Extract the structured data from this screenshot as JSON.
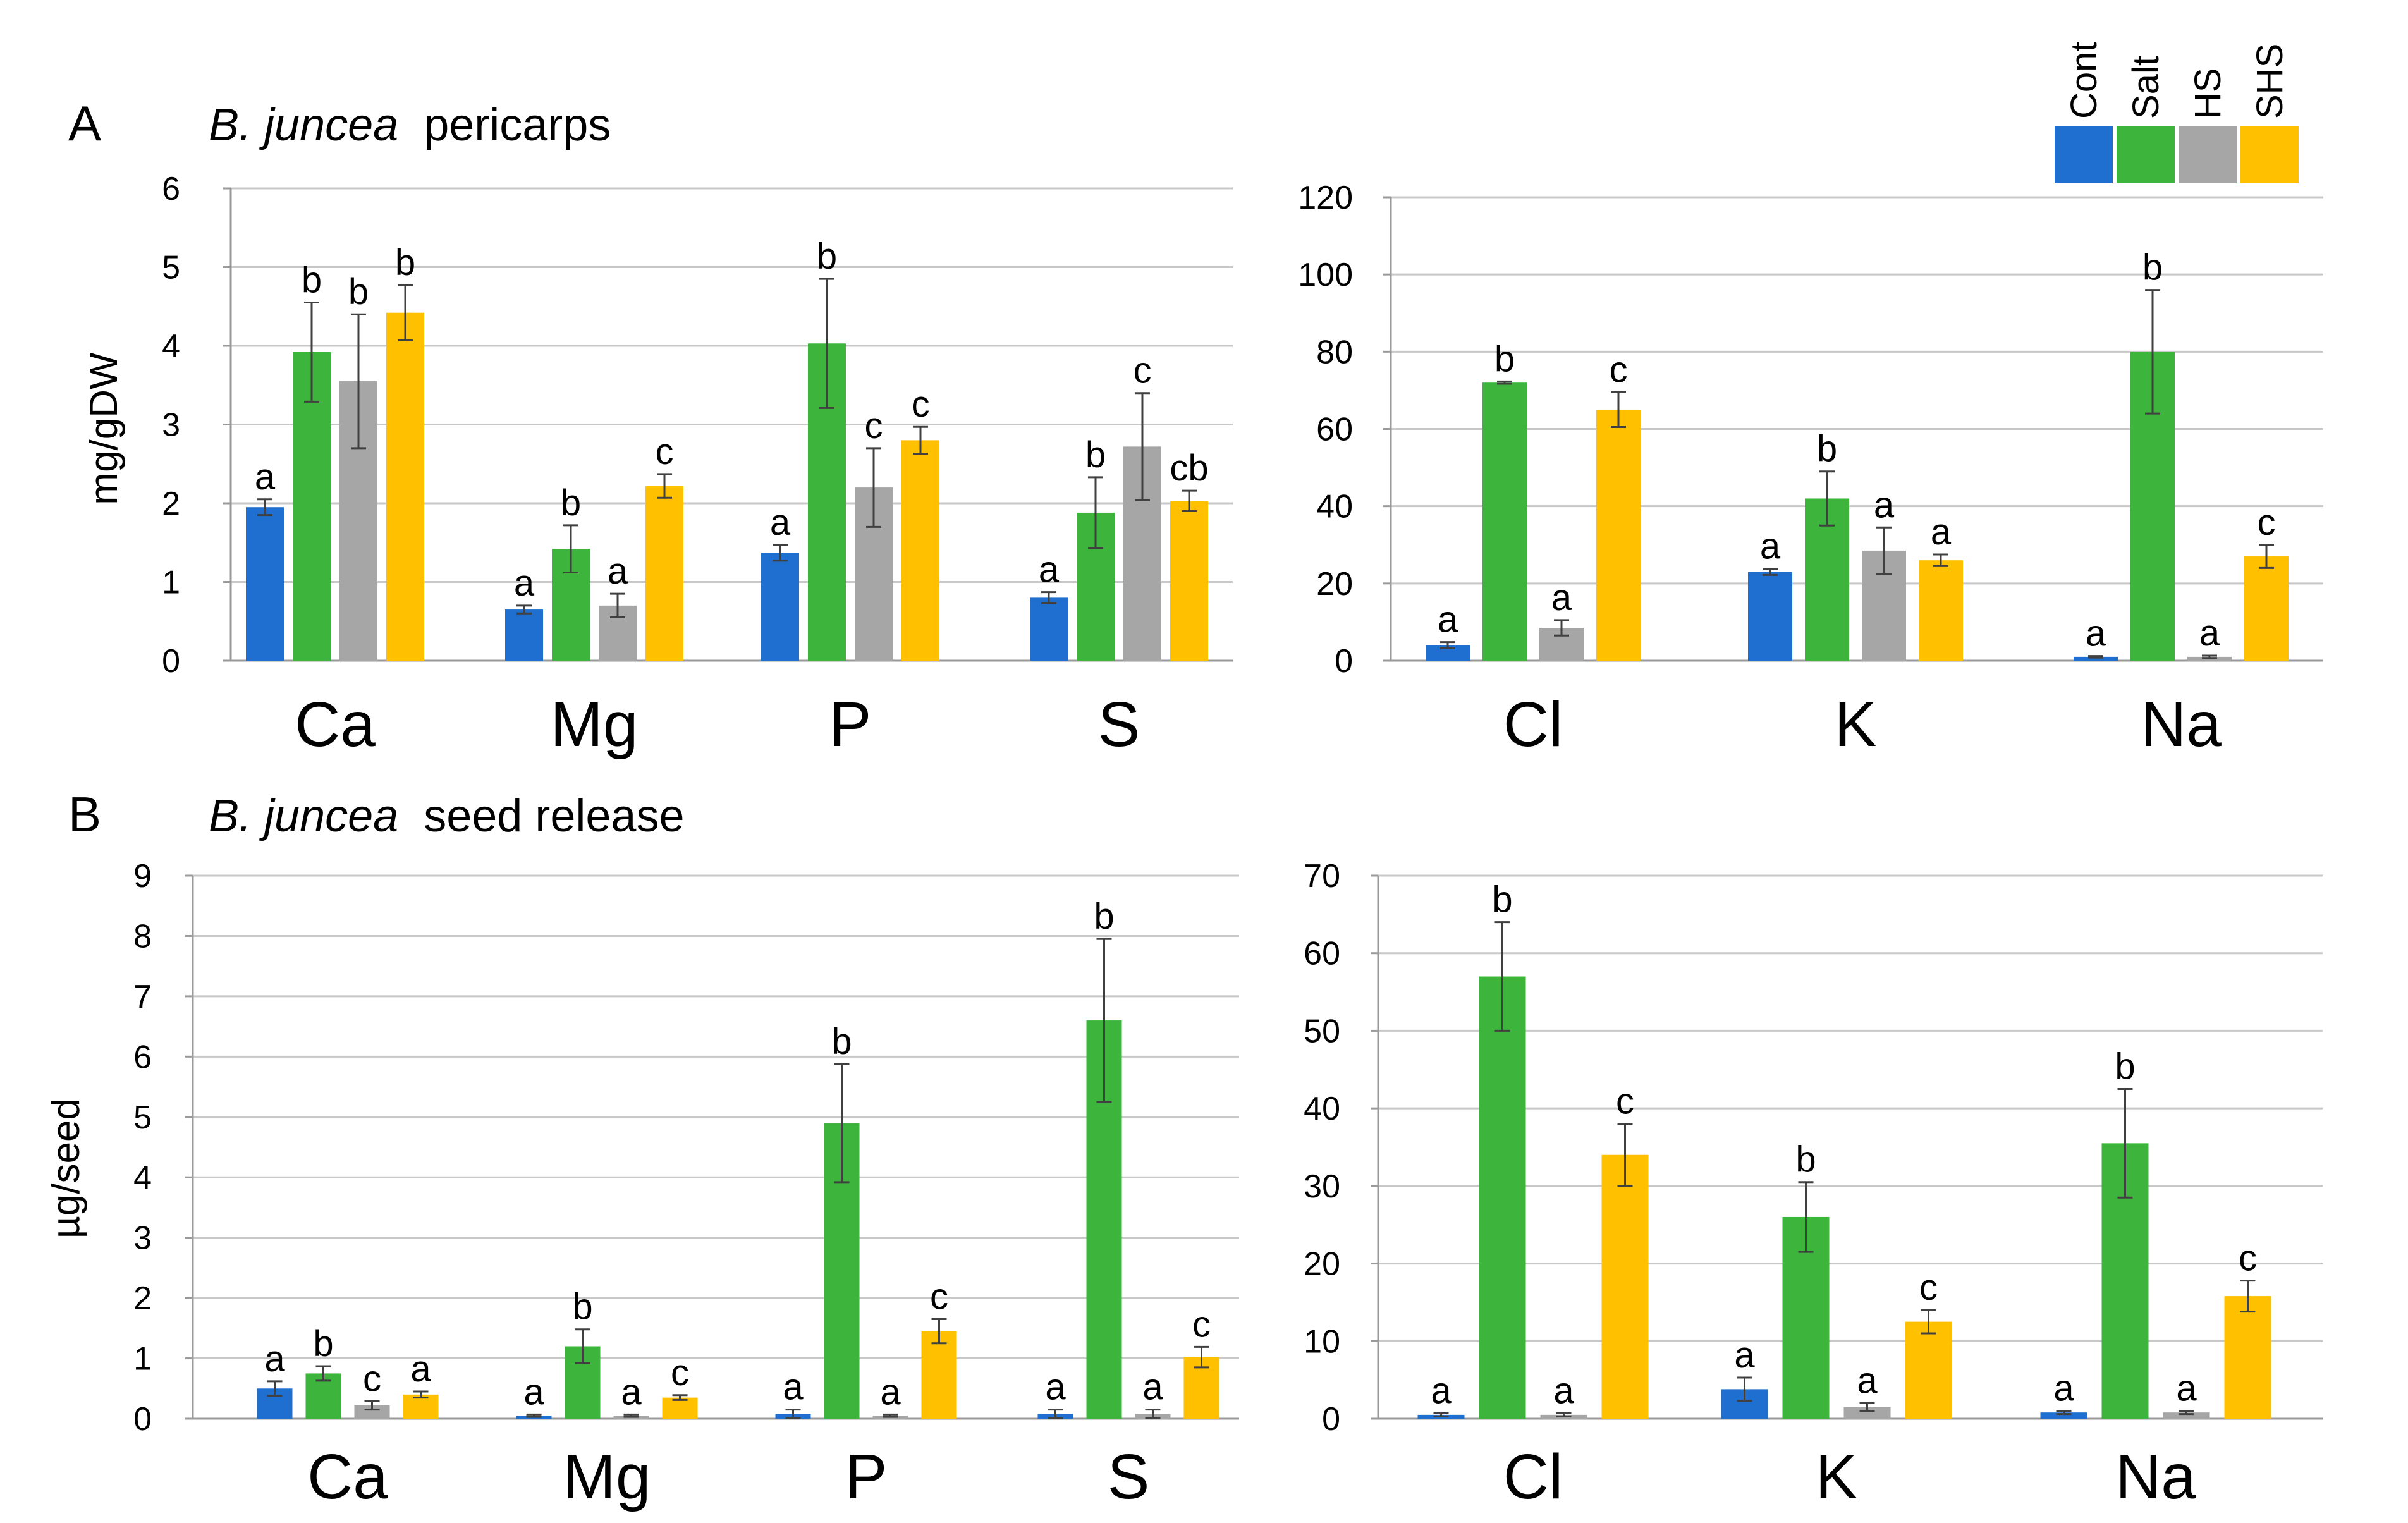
{
  "panels": {
    "A": {
      "letter": "A",
      "title_species": "B. juncea",
      "title_rest": "pericarps"
    },
    "B": {
      "letter": "B",
      "title_species": "B. juncea",
      "title_rest": "seed release"
    }
  },
  "legend": {
    "items": [
      {
        "label": "Cont",
        "color": "#1F6FD0"
      },
      {
        "label": "Salt",
        "color": "#3DB53D"
      },
      {
        "label": "HS",
        "color": "#A6A6A6"
      },
      {
        "label": "SHS",
        "color": "#FFC000"
      }
    ]
  },
  "chart_data": [
    {
      "id": "A-left",
      "type": "bar",
      "title": "B. juncea pericarps",
      "ylabel": "mg/gDW",
      "xlabel": "",
      "ylim": [
        0,
        6
      ],
      "yticks": [
        0,
        1,
        2,
        3,
        4,
        5,
        6
      ],
      "grid": true,
      "categories": [
        "Ca",
        "Mg",
        "P",
        "S"
      ],
      "series": [
        {
          "name": "Cont",
          "values": [
            1.95,
            0.65,
            1.37,
            0.8
          ],
          "errors": [
            0.1,
            0.05,
            0.1,
            0.07
          ],
          "letters": [
            "a",
            "a",
            "a",
            "a"
          ]
        },
        {
          "name": "Salt",
          "values": [
            3.92,
            1.42,
            4.03,
            1.88
          ],
          "errors": [
            0.63,
            0.3,
            0.82,
            0.45
          ],
          "letters": [
            "b",
            "b",
            "b",
            "b"
          ]
        },
        {
          "name": "HS",
          "values": [
            3.55,
            0.7,
            2.2,
            2.72
          ],
          "errors": [
            0.85,
            0.15,
            0.5,
            0.68
          ],
          "letters": [
            "b",
            "a",
            "c",
            "c"
          ]
        },
        {
          "name": "SHS",
          "values": [
            4.42,
            2.22,
            2.8,
            2.03
          ],
          "errors": [
            0.35,
            0.15,
            0.17,
            0.13
          ],
          "letters": [
            "b",
            "c",
            "c",
            "cb"
          ]
        }
      ]
    },
    {
      "id": "A-right",
      "type": "bar",
      "title": "",
      "ylabel": "",
      "xlabel": "",
      "ylim": [
        0,
        120
      ],
      "yticks": [
        0,
        20,
        40,
        60,
        80,
        100,
        120
      ],
      "grid": true,
      "categories": [
        "Cl",
        "K",
        "Na"
      ],
      "series": [
        {
          "name": "Cont",
          "values": [
            4,
            23,
            1
          ],
          "errors": [
            0.8,
            0.8,
            0.2
          ],
          "letters": [
            "a",
            "a",
            "a"
          ]
        },
        {
          "name": "Salt",
          "values": [
            72,
            42,
            80
          ],
          "errors": [
            0.3,
            7,
            16
          ],
          "letters": [
            "b",
            "b",
            "b"
          ]
        },
        {
          "name": "HS",
          "values": [
            8.5,
            28.5,
            1
          ],
          "errors": [
            2,
            6,
            0.3
          ],
          "letters": [
            "a",
            "a",
            "a"
          ]
        },
        {
          "name": "SHS",
          "values": [
            65,
            26,
            27
          ],
          "errors": [
            4.5,
            1.5,
            3
          ],
          "letters": [
            "c",
            "a",
            "c"
          ]
        }
      ]
    },
    {
      "id": "B-left",
      "type": "bar",
      "title": "B. juncea seed release",
      "ylabel": "µg/seed",
      "xlabel": "",
      "ylim": [
        0,
        9
      ],
      "yticks": [
        0,
        1,
        2,
        3,
        4,
        5,
        6,
        7,
        8,
        9
      ],
      "grid": true,
      "categories": [
        "Ca",
        "Mg",
        "P",
        "S"
      ],
      "series": [
        {
          "name": "Cont",
          "values": [
            0.5,
            0.05,
            0.08,
            0.08
          ],
          "errors": [
            0.12,
            0.02,
            0.07,
            0.07
          ],
          "letters": [
            "a",
            "a",
            "a",
            "a"
          ]
        },
        {
          "name": "Salt",
          "values": [
            0.75,
            1.2,
            4.9,
            6.6
          ],
          "errors": [
            0.12,
            0.28,
            0.98,
            1.35
          ],
          "letters": [
            "b",
            "b",
            "b",
            "b"
          ]
        },
        {
          "name": "HS",
          "values": [
            0.22,
            0.05,
            0.05,
            0.08
          ],
          "errors": [
            0.07,
            0.02,
            0.02,
            0.07
          ],
          "letters": [
            "c",
            "a",
            "a",
            "a"
          ]
        },
        {
          "name": "SHS",
          "values": [
            0.4,
            0.35,
            1.45,
            1.02
          ],
          "errors": [
            0.05,
            0.04,
            0.2,
            0.17
          ],
          "letters": [
            "a",
            "c",
            "c",
            "c"
          ]
        }
      ]
    },
    {
      "id": "B-right",
      "type": "bar",
      "title": "",
      "ylabel": "",
      "xlabel": "",
      "ylim": [
        0,
        70
      ],
      "yticks": [
        0,
        10,
        20,
        30,
        40,
        50,
        60,
        70
      ],
      "grid": true,
      "categories": [
        "Cl",
        "K",
        "Na"
      ],
      "series": [
        {
          "name": "Cont",
          "values": [
            0.5,
            3.8,
            0.8
          ],
          "errors": [
            0.2,
            1.5,
            0.2
          ],
          "letters": [
            "a",
            "a",
            "a"
          ]
        },
        {
          "name": "Salt",
          "values": [
            57,
            26,
            35.5
          ],
          "errors": [
            7,
            4.5,
            7
          ],
          "letters": [
            "b",
            "b",
            "b"
          ]
        },
        {
          "name": "HS",
          "values": [
            0.5,
            1.5,
            0.8
          ],
          "errors": [
            0.2,
            0.5,
            0.2
          ],
          "letters": [
            "a",
            "a",
            "a"
          ]
        },
        {
          "name": "SHS",
          "values": [
            34,
            12.5,
            15.8
          ],
          "errors": [
            4,
            1.5,
            2
          ],
          "letters": [
            "c",
            "c",
            "c"
          ]
        }
      ]
    }
  ]
}
